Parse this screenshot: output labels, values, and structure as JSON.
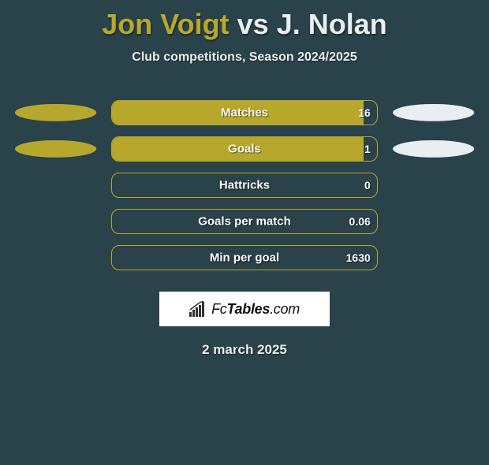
{
  "title": {
    "player1": "Jon Voigt",
    "vs": "vs",
    "player2": "J. Nolan",
    "player1_color": "#b7a82d",
    "player2_color": "#e9eef0"
  },
  "subtitle": "Club competitions, Season 2024/2025",
  "chart": {
    "track_width": 340,
    "track_height": 32,
    "border_color": "#b7a82d",
    "border_radius": 10,
    "left_fill_color": "#b7a82d",
    "right_fill_color": "#e9eef0",
    "label_color": "#fcfcfc",
    "label_fontsize": 15,
    "value_fontsize": 14,
    "background_color": "#2a424a",
    "metrics": [
      {
        "label": "Matches",
        "left_val": "",
        "right_val": "16",
        "left_pct": 95,
        "right_pct": 0,
        "show_blobs": true
      },
      {
        "label": "Goals",
        "left_val": "",
        "right_val": "1",
        "left_pct": 95,
        "right_pct": 0,
        "show_blobs": true
      },
      {
        "label": "Hattricks",
        "left_val": "",
        "right_val": "0",
        "left_pct": 0,
        "right_pct": 0,
        "show_blobs": false
      },
      {
        "label": "Goals per match",
        "left_val": "",
        "right_val": "0.06",
        "left_pct": 0,
        "right_pct": 0,
        "show_blobs": false
      },
      {
        "label": "Min per goal",
        "left_val": "",
        "right_val": "1630",
        "left_pct": 0,
        "right_pct": 0,
        "show_blobs": false
      }
    ]
  },
  "brand": {
    "text_prefix": "Fc",
    "text_bold": "Tables",
    "text_suffix": ".com",
    "bg_color": "#ffffff",
    "bar_color": "#333333"
  },
  "date": "2 march 2025"
}
